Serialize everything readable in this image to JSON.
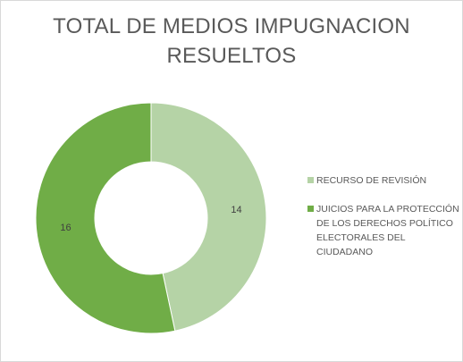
{
  "chart_data": {
    "type": "pie",
    "title_lines": [
      "TOTAL DE MEDIOS IMPUGNACION",
      "RESUELTOS"
    ],
    "categories": [
      "RECURSO DE REVISIÓN",
      "JUICIOS PARA LA PROTECCIÓN DE LOS DERECHOS POLÍTICO ELECTORALES DEL CIUDADANO"
    ],
    "values": [
      14,
      16
    ],
    "colors": [
      "#b5d3a6",
      "#70ad47"
    ],
    "donut": true,
    "legend_position": "right"
  },
  "legend": {
    "items": [
      {
        "label_lines": [
          "RECURSO DE REVISIÓN"
        ]
      },
      {
        "label_lines": [
          "JUICIOS PARA LA PROTECCIÓN",
          "DE LOS DERECHOS POLÍTICO",
          "ELECTORALES DEL CIUDADANO"
        ]
      }
    ]
  }
}
